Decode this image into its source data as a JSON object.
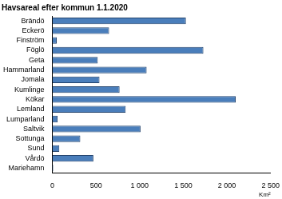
{
  "chart_data": {
    "type": "bar",
    "orientation": "horizontal",
    "title": "Havsareal efter kommun 1.1.2020",
    "xlabel": "Km²",
    "categories": [
      "Brändö",
      "Eckerö",
      "Finström",
      "Föglö",
      "Geta",
      "Hammarland",
      "Jomala",
      "Kumlinge",
      "Kökar",
      "Lemland",
      "Lumparland",
      "Saltvik",
      "Sottunga",
      "Sund",
      "Vårdö",
      "Mariehamn"
    ],
    "values": [
      1530,
      650,
      50,
      1730,
      520,
      1080,
      540,
      770,
      2100,
      840,
      60,
      1010,
      320,
      80,
      470,
      10
    ],
    "color": "#4a7ebb",
    "xlim": [
      0,
      2500
    ],
    "xticks": [
      0,
      500,
      {
        "value": 1000,
        "label": "1 000"
      },
      {
        "value": 1500,
        "label": "1 500"
      },
      {
        "value": 2000,
        "label": "2 000"
      },
      {
        "value": 2500,
        "label": "2 500"
      }
    ],
    "grid": false
  }
}
